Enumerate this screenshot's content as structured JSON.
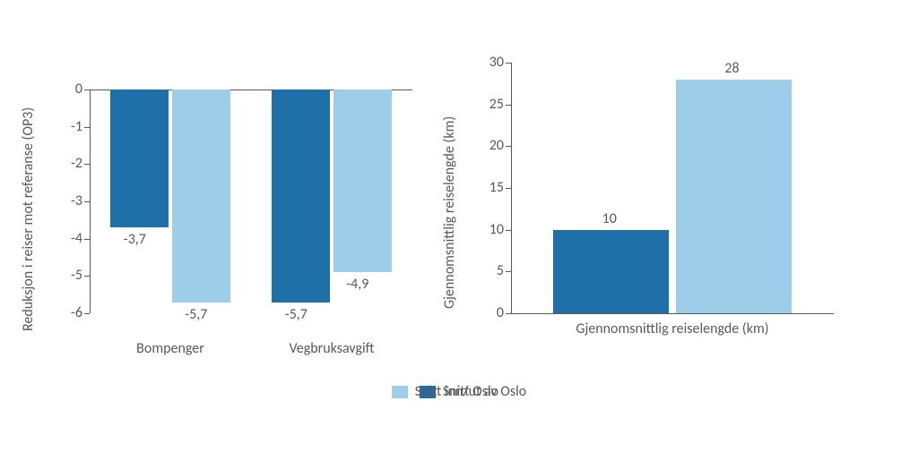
{
  "colors": {
    "series1": "#1f6fa8",
    "series2": "#9dcde9",
    "axis": "#595959",
    "text": "#595959",
    "background": "#ffffff"
  },
  "legend": {
    "items": [
      {
        "label": "Snitt Oslo",
        "colorKey": "series1"
      },
      {
        "label": "Snitt inn/ut av Oslo",
        "colorKey": "series2"
      }
    ]
  },
  "left_chart": {
    "type": "bar",
    "y_title": "Reduksjon i reiser mot referanse (OP3)",
    "ylim": [
      -6,
      0
    ],
    "ytick_step": 1,
    "yticks": [
      0,
      -1,
      -2,
      -3,
      -4,
      -5,
      -6
    ],
    "categories": [
      "Bompenger",
      "Vegbruksavgift"
    ],
    "series": [
      {
        "name": "Snitt Oslo",
        "values": [
          -3.7,
          -5.7
        ],
        "labels": [
          "-3,7",
          "-5,7"
        ],
        "colorKey": "series1"
      },
      {
        "name": "Snitt inn/ut av Oslo",
        "values": [
          -5.7,
          -4.9
        ],
        "labels": [
          "-5,7",
          "-4,9"
        ],
        "colorKey": "series2"
      }
    ],
    "bar_width": 0.36,
    "bar_gap": 0.02,
    "title_fontsize": 16,
    "label_fontsize": 16
  },
  "right_chart": {
    "type": "bar",
    "y_title": "Gjennomsnittlig reiselengde (km)",
    "ylim": [
      0,
      30
    ],
    "ytick_step": 5,
    "yticks": [
      0,
      5,
      10,
      15,
      20,
      25,
      30
    ],
    "categories": [
      "Gjennomsnittlig reiselengde (km)"
    ],
    "series": [
      {
        "name": "Snitt Oslo",
        "values": [
          10
        ],
        "labels": [
          "10"
        ],
        "colorKey": "series1"
      },
      {
        "name": "Snitt inn/ut av Oslo",
        "values": [
          28
        ],
        "labels": [
          "28"
        ],
        "colorKey": "series2"
      }
    ],
    "bar_width": 0.36,
    "bar_gap": 0.02,
    "title_fontsize": 16,
    "label_fontsize": 16
  }
}
